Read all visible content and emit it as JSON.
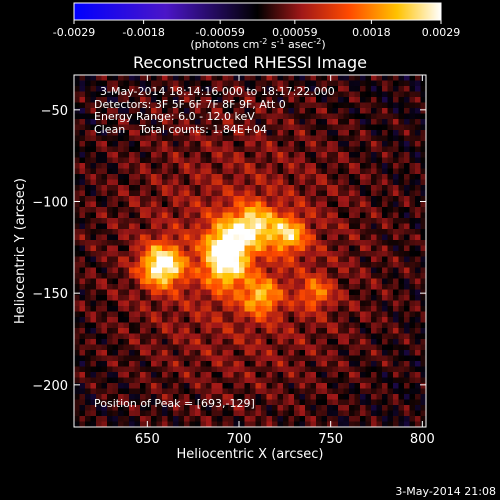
{
  "chart_data": {
    "type": "heatmap",
    "title": "Reconstructed RHESSI Image",
    "xlabel": "Heliocentric X (arcsec)",
    "ylabel": "Heliocentric Y (arcsec)",
    "xlim": [
      610,
      802
    ],
    "ylim": [
      -223,
      -31
    ],
    "xticks": [
      650,
      700,
      750,
      800
    ],
    "yticks": [
      -50,
      -100,
      -150,
      -200
    ],
    "colorbar": {
      "min": -0.0029,
      "max": 0.0029,
      "ticks": [
        -0.0029,
        -0.0018,
        -0.00059,
        0.00059,
        0.0018,
        0.0029
      ],
      "tick_labels": [
        "-0.0029",
        "-0.0018",
        "-0.00059",
        "0.00059",
        "0.0018",
        "0.0029"
      ],
      "unit_prefix": "(photons cm",
      "unit_sup1": "-2",
      "unit_mid": " s",
      "unit_sup2": "-1",
      "unit_mid2": " asec",
      "unit_sup3": "-2",
      "unit_suffix": ")"
    },
    "annotations": [
      "3-May-2014 18:14:16.000 to 18:17:22.000",
      "Detectors: 3F 5F 6F 7F 8F 9F, Att 0",
      "Energy Range: 6.0 - 12.0 keV",
      "Clean    Total counts: 1.84E+04"
    ],
    "peak_label": "Position of Peak = [693,-129]",
    "sources": [
      {
        "x": 658,
        "y": -135,
        "peak": 0.0026,
        "sx": 8,
        "sy": 8
      },
      {
        "x": 693,
        "y": -129,
        "peak": 0.0029,
        "sx": 8,
        "sy": 11
      },
      {
        "x": 708,
        "y": -113,
        "peak": 0.0019,
        "sx": 8,
        "sy": 8
      },
      {
        "x": 727,
        "y": -118,
        "peak": 0.0017,
        "sx": 7,
        "sy": 7
      },
      {
        "x": 712,
        "y": -152,
        "peak": 0.0015,
        "sx": 7,
        "sy": 7
      },
      {
        "x": 742,
        "y": -150,
        "peak": 0.0012,
        "sx": 6,
        "sy": 6
      }
    ]
  },
  "footer": {
    "timestamp": "3-May-2014 21:08"
  }
}
